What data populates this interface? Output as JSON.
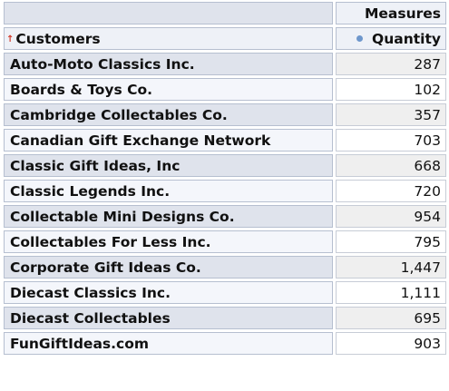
{
  "header": {
    "measures_label": "Measures",
    "customers_label": "Customers",
    "quantity_label": "Quantity",
    "sort_icon": "sort-up-arrow-icon",
    "measure_icon": "measure-dot-icon",
    "sort_icon_color": "#d23a2a",
    "measure_icon_color": "#6e97cc"
  },
  "rows": [
    {
      "customer": "Auto-Moto Classics Inc.",
      "quantity": "287"
    },
    {
      "customer": "Boards & Toys Co.",
      "quantity": "102"
    },
    {
      "customer": "Cambridge Collectables Co.",
      "quantity": "357"
    },
    {
      "customer": "Canadian Gift Exchange Network",
      "quantity": "703"
    },
    {
      "customer": "Classic Gift Ideas, Inc",
      "quantity": "668"
    },
    {
      "customer": "Classic Legends Inc.",
      "quantity": "720"
    },
    {
      "customer": "Collectable Mini Designs Co.",
      "quantity": "954"
    },
    {
      "customer": "Collectables For Less Inc.",
      "quantity": "795"
    },
    {
      "customer": "Corporate Gift Ideas Co.",
      "quantity": "1,447"
    },
    {
      "customer": "Diecast Classics Inc.",
      "quantity": "1,111"
    },
    {
      "customer": "Diecast Collectables",
      "quantity": "695"
    },
    {
      "customer": "FunGiftIdeas.com",
      "quantity": "903"
    }
  ]
}
